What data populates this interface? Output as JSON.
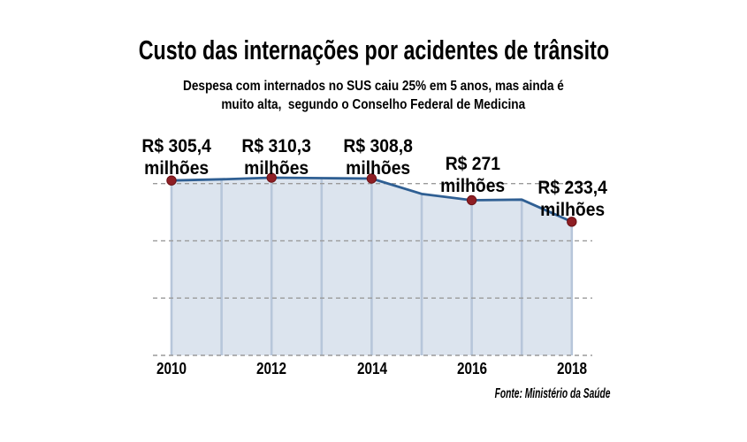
{
  "title": "Custo das internações por acidentes de trânsito",
  "subtitle_lines": [
    "Despesa com internados no SUS caiu 25% em 5 anos, mas ainda é",
    "muito alta,  segundo o Conselho Federal de Medicina"
  ],
  "source": "Fonte: Ministério da Saúde",
  "chart_data": {
    "type": "area",
    "title": "Custo das internações por acidentes de trânsito",
    "subtitle": "Despesa com internados no SUS caiu 25% em 5 anos, mas ainda é muito alta, segundo o Conselho Federal de Medicina",
    "x": [
      2010,
      2011,
      2012,
      2013,
      2014,
      2015,
      2016,
      2017,
      2018
    ],
    "values": [
      305.4,
      307.5,
      310.3,
      309.5,
      308.8,
      282,
      271,
      272,
      233.4
    ],
    "labeled_points": [
      {
        "year": 2010,
        "value": 305.4,
        "label": "R$ 305,4",
        "unit": "milhões"
      },
      {
        "year": 2012,
        "value": 310.3,
        "label": "R$ 310,3",
        "unit": "milhões"
      },
      {
        "year": 2014,
        "value": 308.8,
        "label": "R$ 308,8",
        "unit": "milhões"
      },
      {
        "year": 2016,
        "value": 271,
        "label": "R$ 271",
        "unit": "milhões"
      },
      {
        "year": 2018,
        "value": 233.4,
        "label": "R$ 233,4",
        "unit": "milhões"
      }
    ],
    "x_ticks": [
      "2010",
      "2012",
      "2014",
      "2016",
      "2018"
    ],
    "unit": "R$ milhões",
    "ylim": [
      0,
      330
    ],
    "gridline_values": [
      0,
      100,
      200,
      300
    ],
    "grid": "horizontal-dashed",
    "legend": false,
    "source": "Fonte: Ministério da Saúde",
    "colors": {
      "line": "#2f5f93",
      "fill": "#dce4ee",
      "divider": "#b7c6da",
      "dot": "#8e1e24",
      "dot_edge": "#6b1216",
      "gridline": "#9a9a9a",
      "text": "#000000",
      "background": "#ffffff"
    }
  }
}
